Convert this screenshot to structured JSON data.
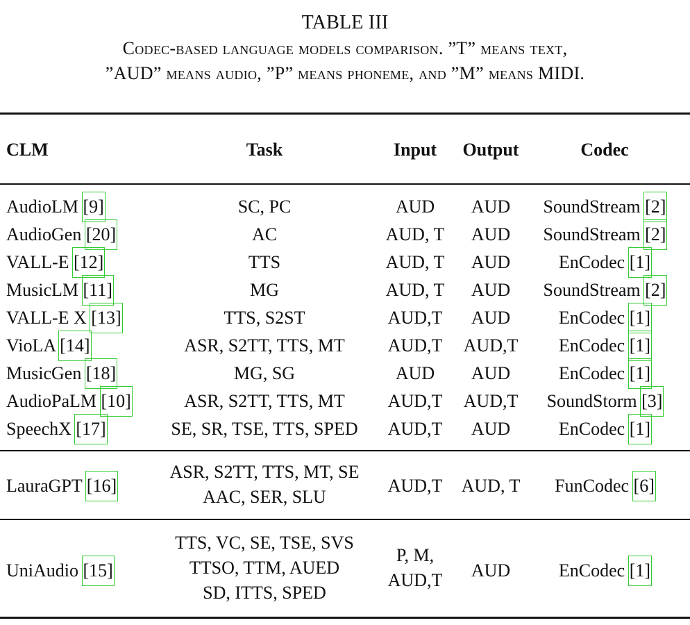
{
  "caption": {
    "label": "TABLE III",
    "line1": "Codec-based language models comparison. ”T” means text,",
    "line2": "”AUD” means audio, ”P” means phoneme, and ”M” means MIDI."
  },
  "headers": {
    "clm": "CLM",
    "task": "Task",
    "input": "Input",
    "output": "Output",
    "codec": "Codec"
  },
  "rows": [
    {
      "clm": "AudioLM",
      "clm_ref": "[9]",
      "task": "SC, PC",
      "input": "AUD",
      "output": "AUD",
      "codec": "SoundStream",
      "codec_ref": "[2]"
    },
    {
      "clm": "AudioGen",
      "clm_ref": "[20]",
      "task": "AC",
      "input": "AUD, T",
      "output": "AUD",
      "codec": "SoundStream",
      "codec_ref": "[2]"
    },
    {
      "clm": "VALL-E",
      "clm_ref": "[12]",
      "task": "TTS",
      "input": "AUD, T",
      "output": "AUD",
      "codec": "EnCodec",
      "codec_ref": "[1]"
    },
    {
      "clm": "MusicLM",
      "clm_ref": "[11]",
      "task": "MG",
      "input": "AUD, T",
      "output": "AUD",
      "codec": "SoundStream",
      "codec_ref": "[2]"
    },
    {
      "clm": "VALL-E X",
      "clm_ref": "[13]",
      "task": "TTS, S2ST",
      "input": "AUD,T",
      "output": "AUD",
      "codec": "EnCodec",
      "codec_ref": "[1]"
    },
    {
      "clm": "VioLA",
      "clm_ref": "[14]",
      "task": "ASR, S2TT, TTS, MT",
      "input": "AUD,T",
      "output": "AUD,T",
      "codec": "EnCodec",
      "codec_ref": "[1]"
    },
    {
      "clm": "MusicGen",
      "clm_ref": "[18]",
      "task": "MG, SG",
      "input": "AUD",
      "output": "AUD",
      "codec": "EnCodec",
      "codec_ref": "[1]"
    },
    {
      "clm": "AudioPaLM",
      "clm_ref": "[10]",
      "task": "ASR, S2TT, TTS, MT",
      "input": "AUD,T",
      "output": "AUD,T",
      "codec": "SoundStorm",
      "codec_ref": "[3]"
    },
    {
      "clm": "SpeechX",
      "clm_ref": "[17]",
      "task": "SE, SR, TSE, TTS, SPED",
      "input": "AUD,T",
      "output": "AUD",
      "codec": "EnCodec",
      "codec_ref": "[1]"
    }
  ],
  "lauragpt": {
    "clm": "LauraGPT",
    "clm_ref": "[16]",
    "task_lines": [
      "ASR, S2TT, TTS, MT, SE",
      "AAC, SER, SLU"
    ],
    "input": "AUD,T",
    "output": "AUD, T",
    "codec": "FunCodec",
    "codec_ref": "[6]"
  },
  "uniaudio": {
    "clm": "UniAudio",
    "clm_ref": "[15]",
    "task_lines": [
      "TTS, VC, SE, TSE, SVS",
      "TTSO, TTM, AUED",
      "SD, ITTS, SPED"
    ],
    "input_lines": [
      "P, M,",
      "AUD,T"
    ],
    "output": "AUD",
    "codec": "EnCodec",
    "codec_ref": "[1]"
  }
}
